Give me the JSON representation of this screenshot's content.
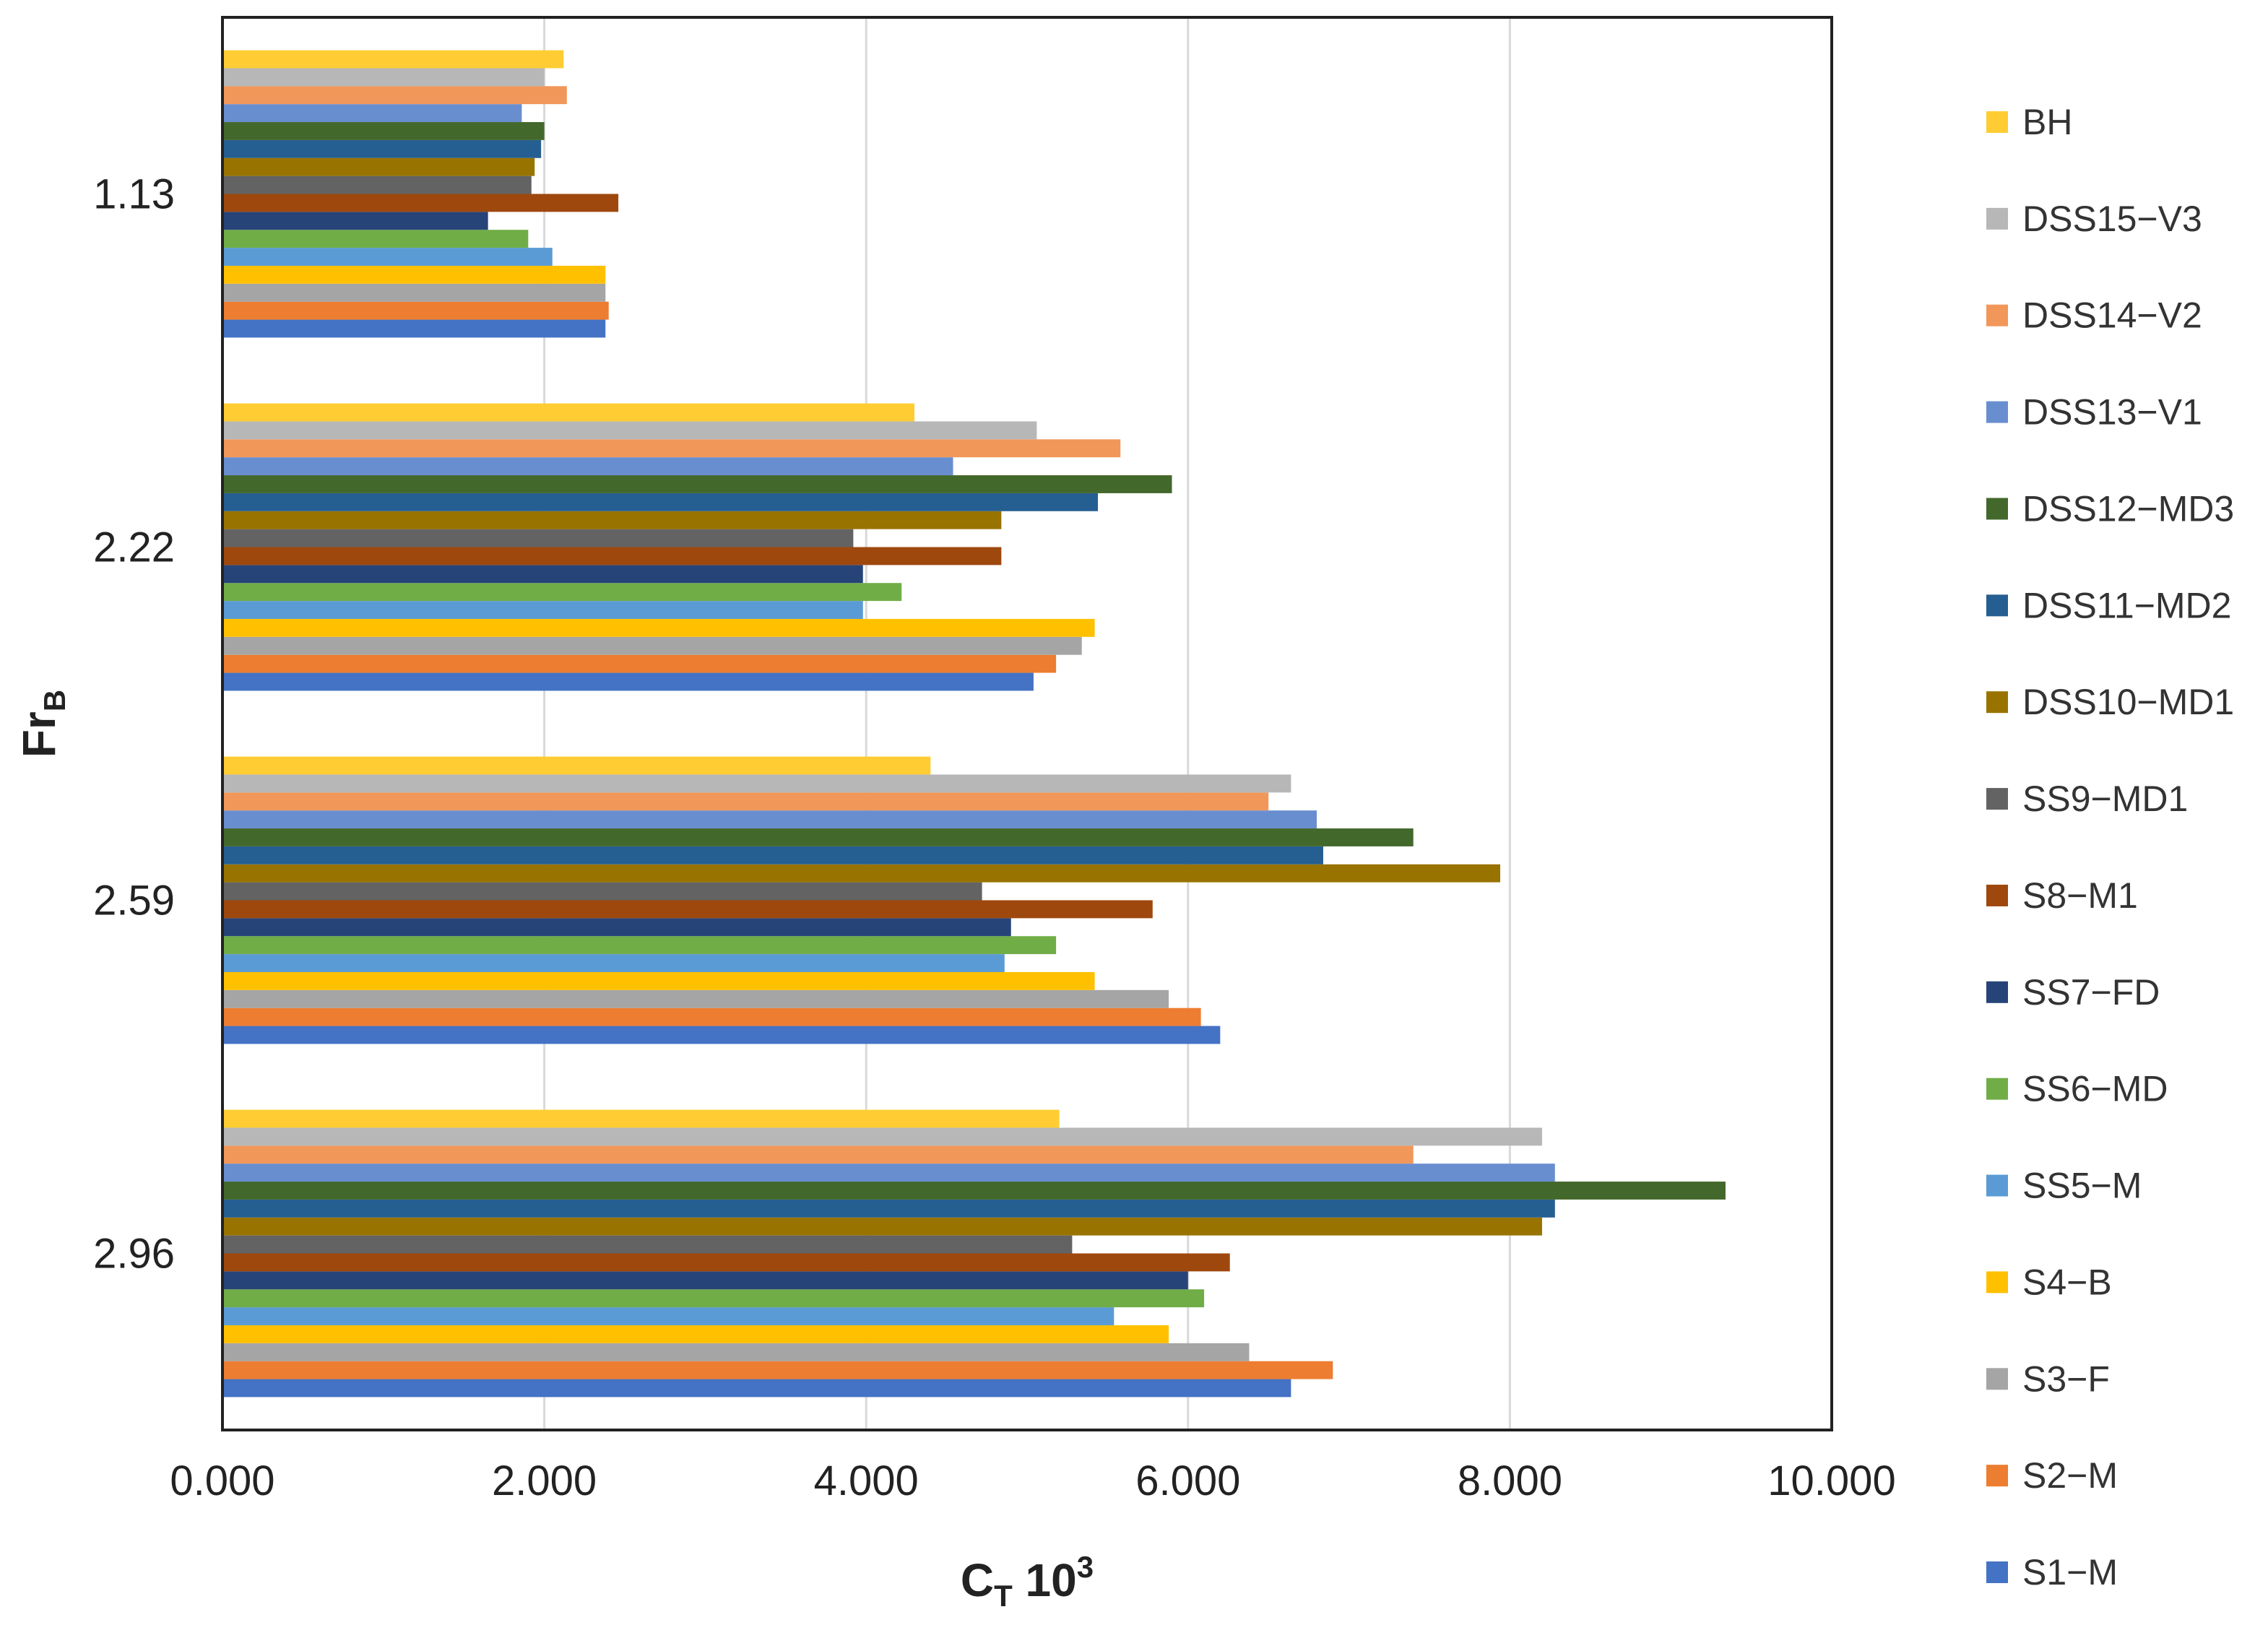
{
  "chart_data": {
    "type": "bar",
    "orientation": "horizontal",
    "categories": [
      "1.13",
      "2.22",
      "2.59",
      "2.96"
    ],
    "xlim": [
      0,
      10
    ],
    "x_ticks": [
      "0.000",
      "2.000",
      "4.000",
      "6.000",
      "8.000",
      "10.000"
    ],
    "xlabel": {
      "main": "C",
      "sub": "T",
      "tail": " 10",
      "sup": "3"
    },
    "ylabel": {
      "main": "Fr",
      "sub": "B"
    },
    "grid": "vertical",
    "legend_position": "right",
    "series": [
      {
        "name": "S1−M",
        "color": "#4472C4",
        "values": [
          2.38,
          5.04,
          6.2,
          6.64
        ]
      },
      {
        "name": "S2−M",
        "color": "#ED7D31",
        "values": [
          2.4,
          5.18,
          6.08,
          6.9
        ]
      },
      {
        "name": "S3−F",
        "color": "#A5A5A5",
        "values": [
          2.38,
          5.34,
          5.88,
          6.38
        ]
      },
      {
        "name": "S4−B",
        "color": "#FFC000",
        "values": [
          2.38,
          5.42,
          5.42,
          5.88
        ]
      },
      {
        "name": "SS5−M",
        "color": "#5B9BD5",
        "values": [
          2.05,
          3.98,
          4.86,
          5.54
        ]
      },
      {
        "name": "SS6−MD",
        "color": "#70AD47",
        "values": [
          1.9,
          4.22,
          5.18,
          6.1
        ]
      },
      {
        "name": "SS7−FD",
        "color": "#264478",
        "values": [
          1.65,
          3.98,
          4.9,
          6.0
        ]
      },
      {
        "name": "S8−M1",
        "color": "#9E480E",
        "values": [
          2.46,
          4.84,
          5.78,
          6.26
        ]
      },
      {
        "name": "SS9−MD1",
        "color": "#636363",
        "values": [
          1.92,
          3.92,
          4.72,
          5.28
        ]
      },
      {
        "name": "DSS10−MD1",
        "color": "#997300",
        "values": [
          1.94,
          4.84,
          7.94,
          8.2
        ]
      },
      {
        "name": "DSS11−MD2",
        "color": "#255E91",
        "values": [
          1.98,
          5.44,
          6.84,
          8.28
        ]
      },
      {
        "name": "DSS12−MD3",
        "color": "#43682B",
        "values": [
          2.0,
          5.9,
          7.4,
          9.34
        ]
      },
      {
        "name": "DSS13−V1",
        "color": "#698ED0",
        "values": [
          1.86,
          4.54,
          6.8,
          8.28
        ]
      },
      {
        "name": "DSS14−V2",
        "color": "#F1975A",
        "values": [
          2.14,
          5.58,
          6.5,
          7.4
        ]
      },
      {
        "name": "DSS15−V3",
        "color": "#B7B7B7",
        "values": [
          2.0,
          5.06,
          6.64,
          8.2
        ]
      },
      {
        "name": "BH",
        "color": "#FFCD33",
        "values": [
          2.12,
          4.3,
          4.4,
          5.2
        ]
      }
    ]
  }
}
